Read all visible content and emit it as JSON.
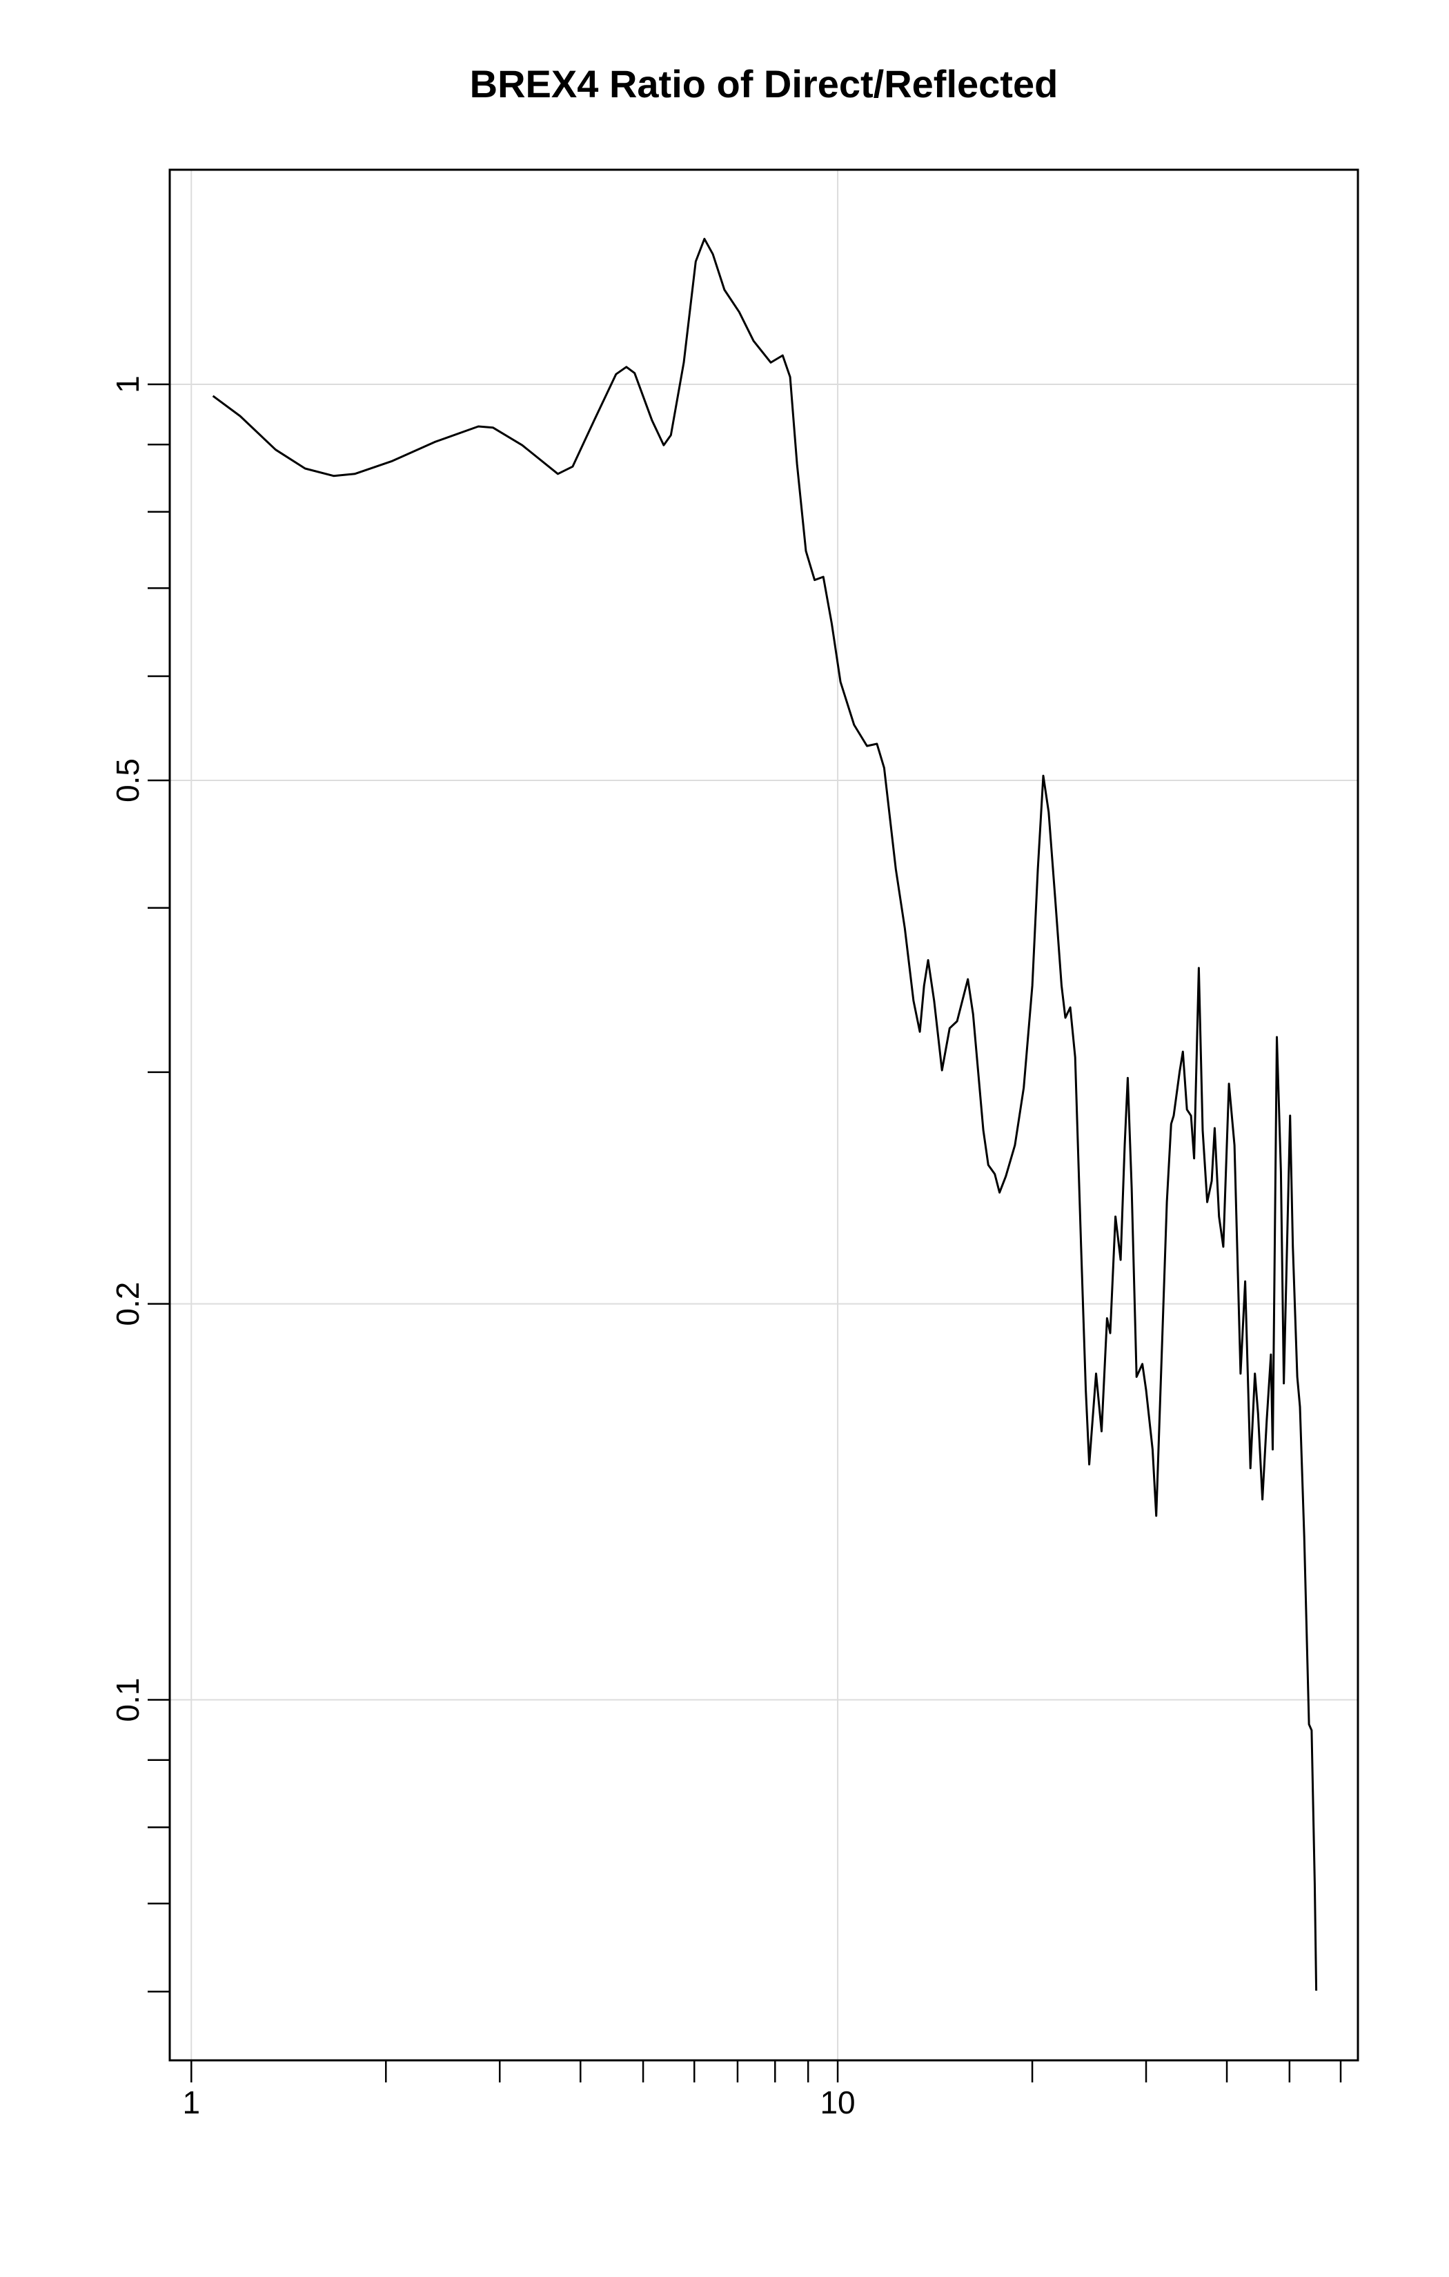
{
  "chart_data": {
    "type": "line",
    "title": "BREX4 Ratio of Direct/Reflected",
    "x": [
      1.08,
      1.19,
      1.35,
      1.5,
      1.66,
      1.79,
      2.04,
      2.38,
      2.78,
      2.93,
      3.25,
      3.69,
      3.89,
      4.2,
      4.54,
      4.71,
      4.85,
      5.16,
      5.38,
      5.52,
      5.78,
      6.03,
      6.22,
      6.41,
      6.68,
      7.04,
      7.41,
      7.88,
      8.22,
      8.44,
      8.65,
      8.93,
      9.21,
      9.5,
      9.79,
      10.1,
      10.6,
      11.1,
      11.5,
      11.8,
      12.3,
      12.7,
      13.1,
      13.4,
      13.6,
      13.8,
      14.1,
      14.5,
      14.9,
      15.3,
      15.9,
      16.2,
      16.8,
      17.1,
      17.5,
      17.8,
      18.2,
      18.8,
      19.4,
      20.0,
      20.4,
      20.8,
      21.2,
      21.7,
      22.2,
      22.5,
      22.9,
      23.3,
      23.8,
      24.2,
      24.5,
      25.1,
      25.6,
      26.1,
      26.4,
      26.9,
      27.4,
      27.8,
      28.1,
      28.5,
      29.0,
      29.6,
      30.0,
      30.7,
      31.1,
      31.8,
      32.3,
      32.8,
      33.1,
      33.8,
      34.2,
      34.7,
      35.2,
      35.6,
      36.2,
      36.7,
      37.3,
      37.9,
      38.3,
      38.9,
      39.5,
      40.3,
      41.1,
      42.0,
      42.7,
      43.5,
      44.2,
      44.7,
      45.4,
      46.1,
      46.8,
      47.1,
      47.8,
      48.5,
      49.0,
      50.1,
      50.6,
      51.4,
      51.9,
      52.7,
      53.6,
      54.1,
      54.7,
      55.0
    ],
    "values": [
      0.98,
      0.946,
      0.892,
      0.863,
      0.852,
      0.855,
      0.874,
      0.904,
      0.929,
      0.927,
      0.899,
      0.855,
      0.866,
      0.939,
      1.018,
      1.031,
      1.02,
      0.939,
      0.899,
      0.915,
      1.039,
      1.24,
      1.29,
      1.256,
      1.18,
      1.135,
      1.079,
      1.039,
      1.052,
      1.013,
      0.87,
      0.747,
      0.71,
      0.714,
      0.658,
      0.594,
      0.551,
      0.531,
      0.533,
      0.511,
      0.428,
      0.386,
      0.34,
      0.322,
      0.349,
      0.365,
      0.34,
      0.301,
      0.324,
      0.328,
      0.353,
      0.332,
      0.271,
      0.255,
      0.251,
      0.243,
      0.25,
      0.264,
      0.292,
      0.349,
      0.428,
      0.504,
      0.473,
      0.407,
      0.349,
      0.33,
      0.336,
      0.308,
      0.221,
      0.172,
      0.151,
      0.177,
      0.16,
      0.195,
      0.19,
      0.233,
      0.216,
      0.264,
      0.297,
      0.245,
      0.176,
      0.18,
      0.172,
      0.155,
      0.138,
      0.19,
      0.239,
      0.274,
      0.278,
      0.3,
      0.311,
      0.281,
      0.278,
      0.258,
      0.36,
      0.271,
      0.239,
      0.248,
      0.272,
      0.233,
      0.221,
      0.294,
      0.264,
      0.177,
      0.208,
      0.15,
      0.177,
      0.165,
      0.142,
      0.163,
      0.183,
      0.155,
      0.319,
      0.252,
      0.174,
      0.278,
      0.221,
      0.176,
      0.167,
      0.133,
      0.0958,
      0.0948,
      0.0725,
      0.0601
    ],
    "color": "#000000",
    "xlog": true,
    "ylog": true,
    "xlim": [
      0.926,
      63.8
    ],
    "ylim": [
      0.0532,
      1.456
    ],
    "xticks": [
      1,
      10
    ],
    "xminor": [
      2,
      3,
      4,
      5,
      6,
      7,
      8,
      9,
      20,
      30,
      40,
      50,
      60
    ],
    "yticks": [
      0.1,
      0.2,
      0.5,
      1
    ],
    "yminor": [
      0.06,
      0.07,
      0.08,
      0.09,
      0.3,
      0.4,
      0.6,
      0.7,
      0.8,
      0.9
    ],
    "grid": true
  }
}
